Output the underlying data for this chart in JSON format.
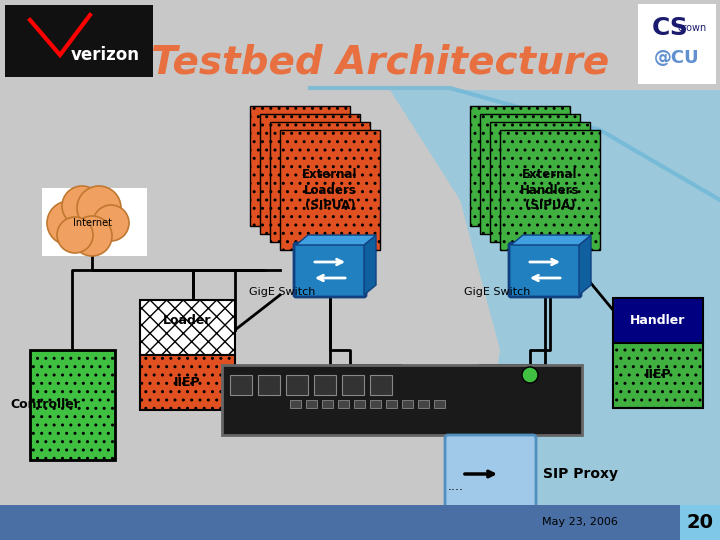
{
  "bg_color": "#c8c8c8",
  "title": "Testbed Architecture",
  "title_color": "#e87040",
  "title_fontsize": 28,
  "date_text": "May 23, 2006",
  "page_num": "20",
  "loader_color": "#e05020",
  "handler_color": "#40b040",
  "switch_color": "#3090d0",
  "controller_color": "#40c040",
  "bottom_bar_color": "#4a6fa5",
  "rack_color": "#2a2a2a",
  "sip_color": "#a0c8e8"
}
